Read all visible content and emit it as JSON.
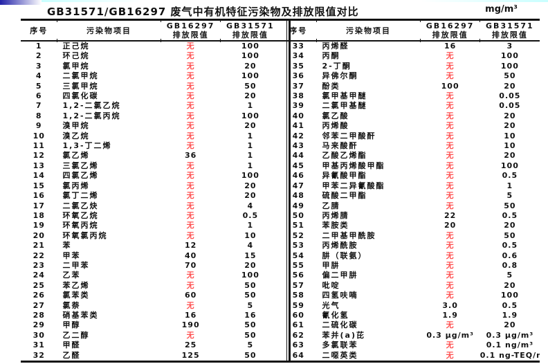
{
  "page": {
    "title": "GB31571/GB16297 废气中有机特征污染物及排放限值对比",
    "unit": "mg/m³"
  },
  "decor": {
    "bar_blue": "#2121a8",
    "bar_cyan": "#c9ffff"
  },
  "table": {
    "none_marker": "无",
    "none_color": "#ff5050",
    "columns": [
      {
        "label": "序号",
        "sub": ""
      },
      {
        "label": "污染物项目",
        "sub": ""
      },
      {
        "label": "GB16297",
        "sub": "排放限值"
      },
      {
        "label": "GB31571",
        "sub": "排放限值"
      }
    ],
    "left_rows": [
      {
        "no": "1",
        "name": "正己烷",
        "gb16297": "无",
        "gb31571": "100"
      },
      {
        "no": "2",
        "name": "环己烷",
        "gb16297": "无",
        "gb31571": "100"
      },
      {
        "no": "3",
        "name": "氯甲烷",
        "gb16297": "无",
        "gb31571": "20"
      },
      {
        "no": "4",
        "name": "二氯甲烷",
        "gb16297": "无",
        "gb31571": "100"
      },
      {
        "no": "5",
        "name": "三氯甲烷",
        "gb16297": "无",
        "gb31571": "50"
      },
      {
        "no": "6",
        "name": "四氯化碳",
        "gb16297": "无",
        "gb31571": "20"
      },
      {
        "no": "7",
        "name": "1,2-二氯乙烷",
        "gb16297": "无",
        "gb31571": "1"
      },
      {
        "no": "8",
        "name": "1,2-二氯丙烷",
        "gb16297": "无",
        "gb31571": "100"
      },
      {
        "no": "9",
        "name": "溴甲烷",
        "gb16297": "无",
        "gb31571": "20"
      },
      {
        "no": "10",
        "name": "溴乙烷",
        "gb16297": "无",
        "gb31571": "1"
      },
      {
        "no": "11",
        "name": "1,3-丁二烯",
        "gb16297": "无",
        "gb31571": "1"
      },
      {
        "no": "12",
        "name": "氯乙烯",
        "gb16297": "36",
        "gb31571": "1"
      },
      {
        "no": "13",
        "name": "三氯乙烯",
        "gb16297": "无",
        "gb31571": "1"
      },
      {
        "no": "14",
        "name": "四氯乙烯",
        "gb16297": "无",
        "gb31571": "100"
      },
      {
        "no": "15",
        "name": "氯丙烯",
        "gb16297": "无",
        "gb31571": "20"
      },
      {
        "no": "16",
        "name": "氯丁二烯",
        "gb16297": "无",
        "gb31571": "20"
      },
      {
        "no": "17",
        "name": "二氯乙炔",
        "gb16297": "无",
        "gb31571": "4"
      },
      {
        "no": "18",
        "name": "环氧乙烷",
        "gb16297": "无",
        "gb31571": "0.5"
      },
      {
        "no": "19",
        "name": "环氧丙烷",
        "gb16297": "无",
        "gb31571": "1"
      },
      {
        "no": "20",
        "name": "环氧氯丙烷",
        "gb16297": "无",
        "gb31571": "10"
      },
      {
        "no": "21",
        "name": "苯",
        "gb16297": "12",
        "gb31571": "4"
      },
      {
        "no": "22",
        "name": "甲苯",
        "gb16297": "40",
        "gb31571": "15"
      },
      {
        "no": "23",
        "name": "二甲苯",
        "gb16297": "70",
        "gb31571": "20"
      },
      {
        "no": "24",
        "name": "乙苯",
        "gb16297": "无",
        "gb31571": "100"
      },
      {
        "no": "25",
        "name": "苯乙烯",
        "gb16297": "无",
        "gb31571": "50"
      },
      {
        "no": "26",
        "name": "氯苯类",
        "gb16297": "60",
        "gb31571": "50"
      },
      {
        "no": "27",
        "name": "氯萘",
        "gb16297": "无",
        "gb31571": "5"
      },
      {
        "no": "28",
        "name": "硝基苯类",
        "gb16297": "16",
        "gb31571": "16"
      },
      {
        "no": "29",
        "name": "甲醇",
        "gb16297": "190",
        "gb31571": "50"
      },
      {
        "no": "30",
        "name": "乙二醇",
        "gb16297": "无",
        "gb31571": "50"
      },
      {
        "no": "31",
        "name": "甲醛",
        "gb16297": "25",
        "gb31571": "5"
      },
      {
        "no": "32",
        "name": "乙醛",
        "gb16297": "125",
        "gb31571": "50"
      }
    ],
    "right_rows": [
      {
        "no": "33",
        "name": "丙烯醛",
        "gb16297": "16",
        "gb31571": "3"
      },
      {
        "no": "34",
        "name": "丙酮",
        "gb16297": "无",
        "gb31571": "100"
      },
      {
        "no": "35",
        "name": "2-丁酮",
        "gb16297": "无",
        "gb31571": "100"
      },
      {
        "no": "36",
        "name": "异佛尔酮",
        "gb16297": "无",
        "gb31571": "50"
      },
      {
        "no": "37",
        "name": "酚类",
        "gb16297": "100",
        "gb31571": "20"
      },
      {
        "no": "38",
        "name": "氯甲基甲醚",
        "gb16297": "无",
        "gb31571": "0.05"
      },
      {
        "no": "39",
        "name": "二氯甲基醚",
        "gb16297": "无",
        "gb31571": "0.05"
      },
      {
        "no": "40",
        "name": "氯乙酸",
        "gb16297": "无",
        "gb31571": "20"
      },
      {
        "no": "41",
        "name": "丙烯酸",
        "gb16297": "无",
        "gb31571": "20"
      },
      {
        "no": "42",
        "name": "邻苯二甲酸酐",
        "gb16297": "无",
        "gb31571": "10"
      },
      {
        "no": "43",
        "name": "马来酸酐",
        "gb16297": "无",
        "gb31571": "10"
      },
      {
        "no": "44",
        "name": "乙酸乙烯酯",
        "gb16297": "无",
        "gb31571": "20"
      },
      {
        "no": "45",
        "name": "甲基丙烯酸甲酯",
        "gb16297": "无",
        "gb31571": "100"
      },
      {
        "no": "46",
        "name": "异氰酸甲酯",
        "gb16297": "无",
        "gb31571": "0.5"
      },
      {
        "no": "47",
        "name": "甲苯二异氰酸酯",
        "gb16297": "无",
        "gb31571": "1"
      },
      {
        "no": "48",
        "name": "硫酸二甲酯",
        "gb16297": "无",
        "gb31571": "5"
      },
      {
        "no": "49",
        "name": "乙腈",
        "gb16297": "无",
        "gb31571": "50"
      },
      {
        "no": "50",
        "name": "丙烯腈",
        "gb16297": "22",
        "gb31571": "0.5"
      },
      {
        "no": "51",
        "name": "苯胺类",
        "gb16297": "20",
        "gb31571": "20"
      },
      {
        "no": "52",
        "name": "二甲基甲酰胺",
        "gb16297": "无",
        "gb31571": "50"
      },
      {
        "no": "53",
        "name": "丙烯酰胺",
        "gb16297": "无",
        "gb31571": "0.5"
      },
      {
        "no": "54",
        "name": "肼（联氨）",
        "gb16297": "无",
        "gb31571": "0.6"
      },
      {
        "no": "55",
        "name": "甲肼",
        "gb16297": "无",
        "gb31571": "0.8"
      },
      {
        "no": "56",
        "name": "偏二甲肼",
        "gb16297": "无",
        "gb31571": "5"
      },
      {
        "no": "57",
        "name": "吡啶",
        "gb16297": "无",
        "gb31571": "20"
      },
      {
        "no": "58",
        "name": "四氢呋喃",
        "gb16297": "无",
        "gb31571": "100"
      },
      {
        "no": "59",
        "name": "光气",
        "gb16297": "3.0",
        "gb31571": "0.5"
      },
      {
        "no": "60",
        "name": "氰化氢",
        "gb16297": "1.9",
        "gb31571": "1.9"
      },
      {
        "no": "61",
        "name": "二硫化碳",
        "gb16297": "无",
        "gb31571": "20"
      },
      {
        "no": "62",
        "name": "苯并(a)芘",
        "gb16297": "0.3 μg/m³",
        "gb31571": "0.3 μg/m³"
      },
      {
        "no": "63",
        "name": "多氯联苯",
        "gb16297": "无",
        "gb31571": "0.1 ng/m³"
      },
      {
        "no": "64",
        "name": "二噁英类",
        "gb16297": "无",
        "gb31571": "0.1 ng-TEQ/m³"
      }
    ]
  }
}
